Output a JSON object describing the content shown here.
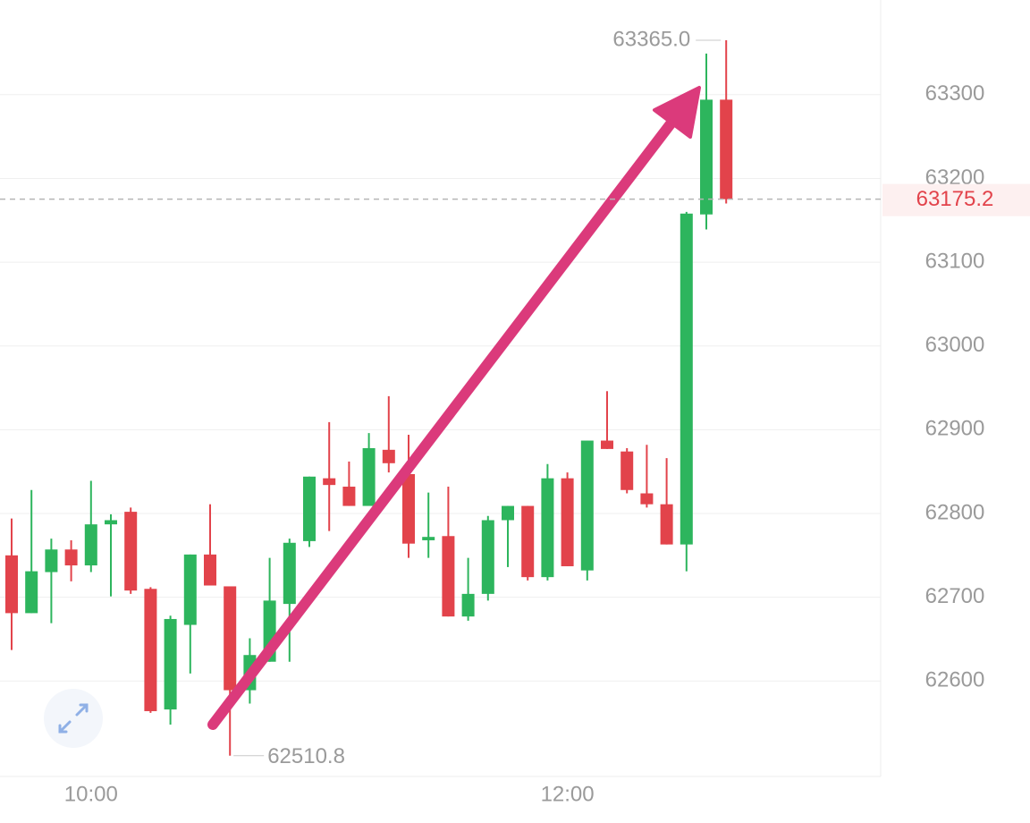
{
  "chart_data": {
    "type": "candlestick",
    "categories": [
      null,
      null,
      null,
      null,
      "10:00",
      null,
      null,
      null,
      null,
      null,
      null,
      null,
      null,
      null,
      null,
      null,
      null,
      null,
      null,
      null,
      null,
      null,
      null,
      null,
      null,
      null,
      null,
      null,
      "12:00",
      null,
      null,
      null,
      null,
      null,
      null,
      null,
      null
    ],
    "open": [
      62750,
      62681,
      62730,
      62757,
      62738,
      62787,
      62802,
      62710,
      62566,
      62667,
      62751,
      62713,
      62589,
      62623,
      62692,
      62767,
      62842,
      62832,
      62809,
      62876,
      62847,
      62768,
      62773,
      62677,
      62704,
      62792,
      62809,
      62724,
      62842,
      62732,
      62887,
      62874,
      62824,
      62811,
      62763,
      63157,
      63294
    ],
    "high": [
      62794,
      62828,
      62770,
      62768,
      62839,
      62799,
      62807,
      62712,
      62678,
      62751,
      62811,
      62713,
      62651,
      62747,
      62770,
      62844,
      62909,
      62862,
      62896,
      62940,
      62894,
      62825,
      62832,
      62747,
      62797,
      62809,
      62809,
      62859,
      62849,
      62887,
      62946,
      62878,
      62882,
      62866,
      63160,
      63349,
      63365.0
    ],
    "low": [
      62637,
      62681,
      62669,
      62719,
      62730,
      62701,
      62704,
      62562,
      62548,
      62609,
      62714,
      62510.8,
      62573,
      62623,
      62623,
      62760,
      62779,
      62809,
      62809,
      62849,
      62747,
      62747,
      62677,
      62672,
      62696,
      62736,
      62720,
      62720,
      62737,
      62720,
      62877,
      62824,
      62807,
      62763,
      62731,
      63139,
      63170
    ],
    "close": [
      62681,
      62731,
      62757,
      62738,
      62787,
      62792,
      62708,
      62564,
      62674,
      62751,
      62714,
      62589,
      62631,
      62696,
      62765,
      62844,
      62834,
      62809,
      62878,
      62860,
      62764,
      62772,
      62677,
      62704,
      62792,
      62809,
      62724,
      62842,
      62737,
      62887,
      62877,
      62828,
      62811,
      62763,
      63158,
      63294,
      63175.2
    ],
    "up_color": "#2db55d",
    "down_color": "#e2434b",
    "ylim": [
      62486,
      63413
    ],
    "yticks": [
      62600,
      62700,
      62800,
      62900,
      63000,
      63100,
      63200,
      63300
    ],
    "grid": true,
    "max_label": {
      "value": 63365.0,
      "label": "63365.0"
    },
    "min_label": {
      "value": 62510.8,
      "label": "62510.8"
    },
    "last_price": {
      "value": 63175.2,
      "label": "63175.2"
    }
  }
}
